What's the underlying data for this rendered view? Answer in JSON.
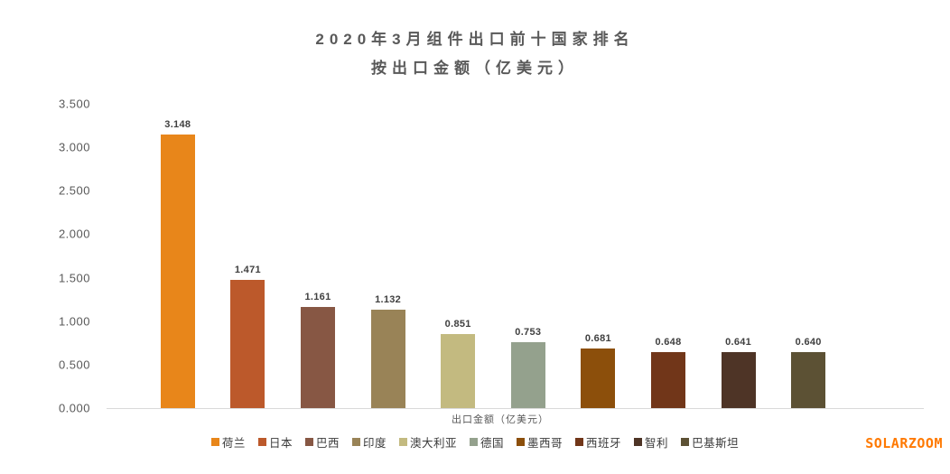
{
  "title": {
    "line1": "2020年3月组件出口前十国家排名",
    "line2": "按出口金额（亿美元）"
  },
  "brand": "SOLARZOOM",
  "colors": {
    "brand": "#FF7900",
    "title_text": "#595959",
    "axis_text": "#595959",
    "value_label_text": "#3F3F3F",
    "baseline": "#D9D9D9"
  },
  "chart_data": {
    "type": "bar",
    "title": "2020年3月组件出口前十国家排名 按出口金额（亿美元）",
    "categories": [
      "荷兰",
      "日本",
      "巴西",
      "印度",
      "澳大利亚",
      "德国",
      "墨西哥",
      "西班牙",
      "智利",
      "巴基斯坦"
    ],
    "values": [
      3.148,
      1.471,
      1.161,
      1.132,
      0.851,
      0.753,
      0.681,
      0.648,
      0.641,
      0.64
    ],
    "value_labels": [
      "3.148",
      "1.471",
      "1.161",
      "1.132",
      "0.851",
      "0.753",
      "0.681",
      "0.648",
      "0.641",
      "0.640"
    ],
    "bar_colors": [
      "#E8861A",
      "#BC592B",
      "#875744",
      "#998357",
      "#C3BA80",
      "#94A18D",
      "#8C4F0B",
      "#713619",
      "#4E3426",
      "#5C5134"
    ],
    "xlabel": "出口金额（亿美元）",
    "ylabel": "",
    "ylim": [
      0,
      3.5
    ],
    "ytick_step": 0.5,
    "ytick_labels": [
      "0.000",
      "0.500",
      "1.000",
      "1.500",
      "2.000",
      "2.500",
      "3.000",
      "3.500"
    ],
    "grid": false,
    "legend_position": "bottom"
  }
}
